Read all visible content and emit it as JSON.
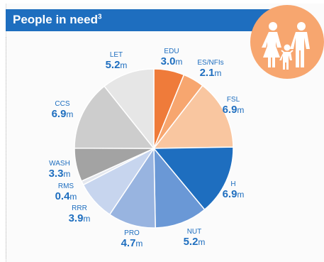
{
  "header": {
    "title": "People in need",
    "footnote": "3"
  },
  "badge": {
    "icon": "family-icon",
    "color": "#f7a66f"
  },
  "chart_data": {
    "type": "pie",
    "unit": "m",
    "title": "",
    "slices": [
      {
        "name": "EDU",
        "value": 3.0,
        "display": "3.0",
        "color": "#ef7b3a"
      },
      {
        "name": "ES/NFIs",
        "value": 2.1,
        "display": "2.1",
        "color": "#f7a66f"
      },
      {
        "name": "FSL",
        "value": 6.9,
        "display": "6.9",
        "color": "#f9c6a0"
      },
      {
        "name": "H",
        "value": 6.9,
        "display": "6.9",
        "color": "#1e6ebf"
      },
      {
        "name": "NUT",
        "value": 5.2,
        "display": "5.2",
        "color": "#6a98d6"
      },
      {
        "name": "PRO",
        "value": 4.7,
        "display": "4.7",
        "color": "#98b4e0"
      },
      {
        "name": "RRR",
        "value": 3.9,
        "display": "3.9",
        "color": "#c7d5ee"
      },
      {
        "name": "RMS",
        "value": 0.4,
        "display": "0.4",
        "color": "#e5e8ee"
      },
      {
        "name": "WASH",
        "value": 3.3,
        "display": "3.3",
        "color": "#a3a3a3"
      },
      {
        "name": "CCS",
        "value": 6.9,
        "display": "6.9",
        "color": "#cdcdcd"
      },
      {
        "name": "LET",
        "value": 5.2,
        "display": "5.2",
        "color": "#e6e6e6"
      }
    ]
  }
}
